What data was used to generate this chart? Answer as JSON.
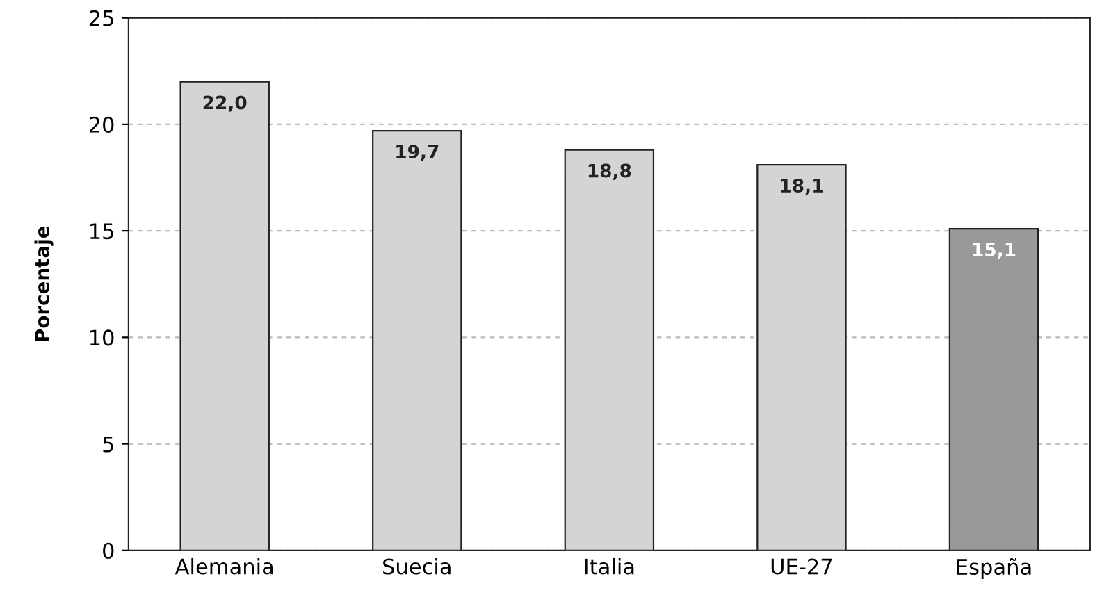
{
  "chart_data": {
    "type": "bar",
    "ylabel": "Porcentaje",
    "categories": [
      "Alemania",
      "Suecia",
      "Italia",
      "UE-27",
      "España"
    ],
    "values": [
      22.0,
      19.7,
      18.8,
      18.1,
      15.1
    ],
    "value_labels": [
      "22,0",
      "19,7",
      "18,8",
      "18,1",
      "15,1"
    ],
    "colors": [
      "#d4d4d4",
      "#d4d4d4",
      "#d4d4d4",
      "#d4d4d4",
      "#999999"
    ],
    "ylim": [
      0,
      25
    ],
    "yticks": [
      0,
      5,
      10,
      15,
      20,
      25
    ],
    "grid": "y",
    "line_style": "dashed"
  }
}
